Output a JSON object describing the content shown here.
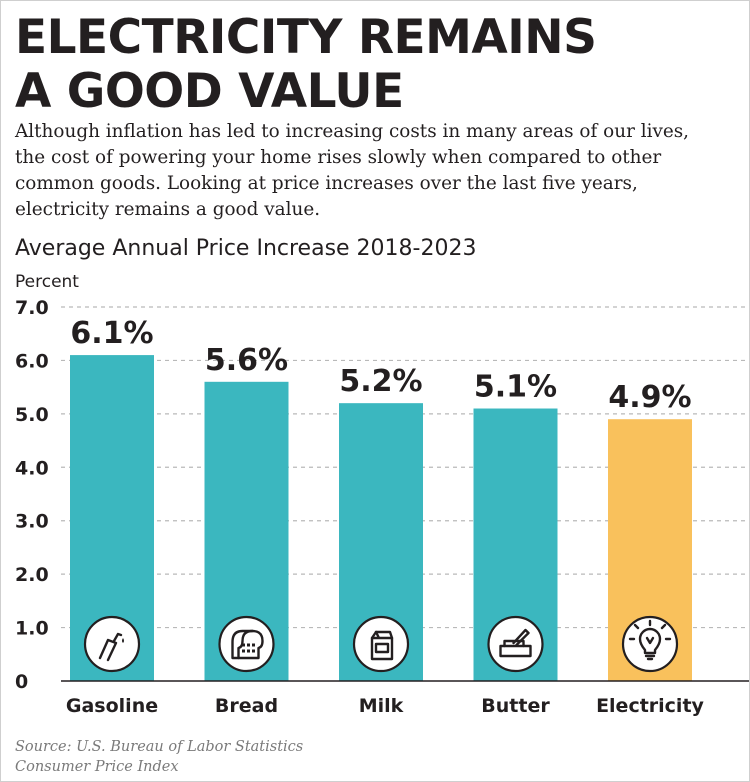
{
  "headline": {
    "line1": "ELECTRICITY REMAINS",
    "line2": "A GOOD VALUE"
  },
  "intro": {
    "lines": [
      "Although inflation has led to increasing costs in many areas of our lives,",
      "the cost of powering your home rises slowly when compared to other",
      "common goods. Looking at price increases over the last five years,",
      "electricity remains a good value."
    ]
  },
  "chart_data": {
    "type": "bar",
    "title": "Average Annual Price Increase 2018-2023",
    "ylabel": "Percent",
    "xlabel": "",
    "ylim": [
      0,
      7
    ],
    "yticks": [
      "0",
      "1.0",
      "2.0",
      "3.0",
      "4.0",
      "5.0",
      "6.0",
      "7.0"
    ],
    "grid": true,
    "categories": [
      "Gasoline",
      "Bread",
      "Milk",
      "Butter",
      "Electricity"
    ],
    "values": [
      6.1,
      5.6,
      5.2,
      5.1,
      4.9
    ],
    "data_labels": [
      "6.1%",
      "5.6%",
      "5.2%",
      "5.1%",
      "4.9%"
    ],
    "icons": [
      "gas-pump-icon",
      "bread-icon",
      "milk-carton-icon",
      "butter-icon",
      "light-bulb-icon"
    ],
    "colors": [
      "#3bb7bf",
      "#3bb7bf",
      "#3bb7bf",
      "#3bb7bf",
      "#f9c15c"
    ]
  },
  "source": {
    "line1": "Source: U.S. Bureau of Labor Statistics",
    "line2": "Consumer Price Index"
  }
}
